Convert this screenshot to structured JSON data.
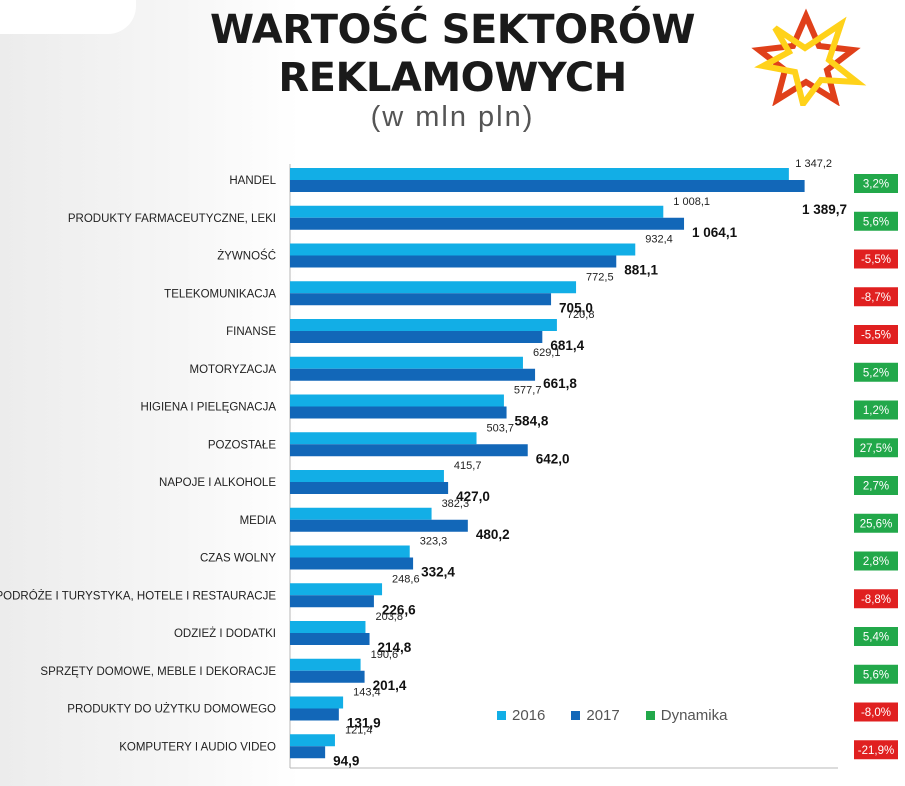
{
  "header": {
    "title_line1": "WARTOŚĆ SEKTORÓW",
    "title_line2": "REKLAMOWYCH",
    "subtitle": "(w mln pln)"
  },
  "colors": {
    "series_2016": "#12aee6",
    "series_2017": "#1267b8",
    "dynamika_positive": "#22a84a",
    "dynamika_negative": "#e02020",
    "logo_red": "#e0401a",
    "logo_yellow": "#ffd21a"
  },
  "legend": [
    {
      "label": "2016",
      "color": "#12aee6"
    },
    {
      "label": "2017",
      "color": "#1267b8"
    },
    {
      "label": "Dynamika",
      "color": "#22a84a"
    }
  ],
  "chart_data": {
    "type": "bar",
    "orientation": "horizontal",
    "categories": [
      "HANDEL",
      "PRODUKTY FARMACEUTYCZNE, LEKI",
      "ŻYWNOŚĆ",
      "TELEKOMUNIKACJA",
      "FINANSE",
      "MOTORYZACJA",
      "HIGIENA I PIELĘGNACJA",
      "POZOSTAŁE",
      "NAPOJE I ALKOHOLE",
      "MEDIA",
      "CZAS WOLNY",
      "PODRÓŻE I TURYSTYKA, HOTELE I RESTAURACJE",
      "ODZIEŻ I DODATKI",
      "SPRZĘTY DOMOWE, MEBLE I DEKORACJE",
      "PRODUKTY DO UŻYTKU DOMOWEGO",
      "KOMPUTERY I AUDIO VIDEO"
    ],
    "series": [
      {
        "name": "2016",
        "values": [
          1347.2,
          1008.1,
          932.4,
          772.5,
          720.8,
          629.1,
          577.7,
          503.7,
          415.7,
          382.3,
          323.3,
          248.6,
          203.8,
          190.6,
          143.4,
          121.4
        ],
        "labels": [
          "1 347,2",
          "1 008,1",
          "932,4",
          "772,5",
          "720,8",
          "629,1",
          "577,7",
          "503,7",
          "415,7",
          "382,3",
          "323,3",
          "248,6",
          "203,8",
          "190,6",
          "143,4",
          "121,4"
        ]
      },
      {
        "name": "2017",
        "values": [
          1389.7,
          1064.1,
          881.1,
          705.0,
          681.4,
          661.8,
          584.8,
          642.0,
          427.0,
          480.2,
          332.4,
          226.6,
          214.8,
          201.4,
          131.9,
          94.9
        ],
        "labels": [
          "1 389,7",
          "1 064,1",
          "881,1",
          "705,0",
          "681,4",
          "661,8",
          "584,8",
          "642,0",
          "427,0",
          "480,2",
          "332,4",
          "226,6",
          "214,8",
          "201,4",
          "131,9",
          "94,9"
        ]
      }
    ],
    "dynamika": {
      "name": "Dynamika",
      "values": [
        3.2,
        5.6,
        -5.5,
        -8.7,
        -5.5,
        5.2,
        1.2,
        27.5,
        2.7,
        25.6,
        2.8,
        -8.8,
        5.4,
        5.6,
        -8.0,
        -21.9
      ],
      "labels": [
        "3,2%",
        "5,6%",
        "-5,5%",
        "-8,7%",
        "-5,5%",
        "5,2%",
        "1,2%",
        "27,5%",
        "2,7%",
        "25,6%",
        "2,8%",
        "-8,8%",
        "5,4%",
        "5,6%",
        "-8,0%",
        "-21,9%"
      ]
    },
    "xlim": [
      0,
      1400
    ],
    "grid": false,
    "legend_position": "bottom-right"
  }
}
